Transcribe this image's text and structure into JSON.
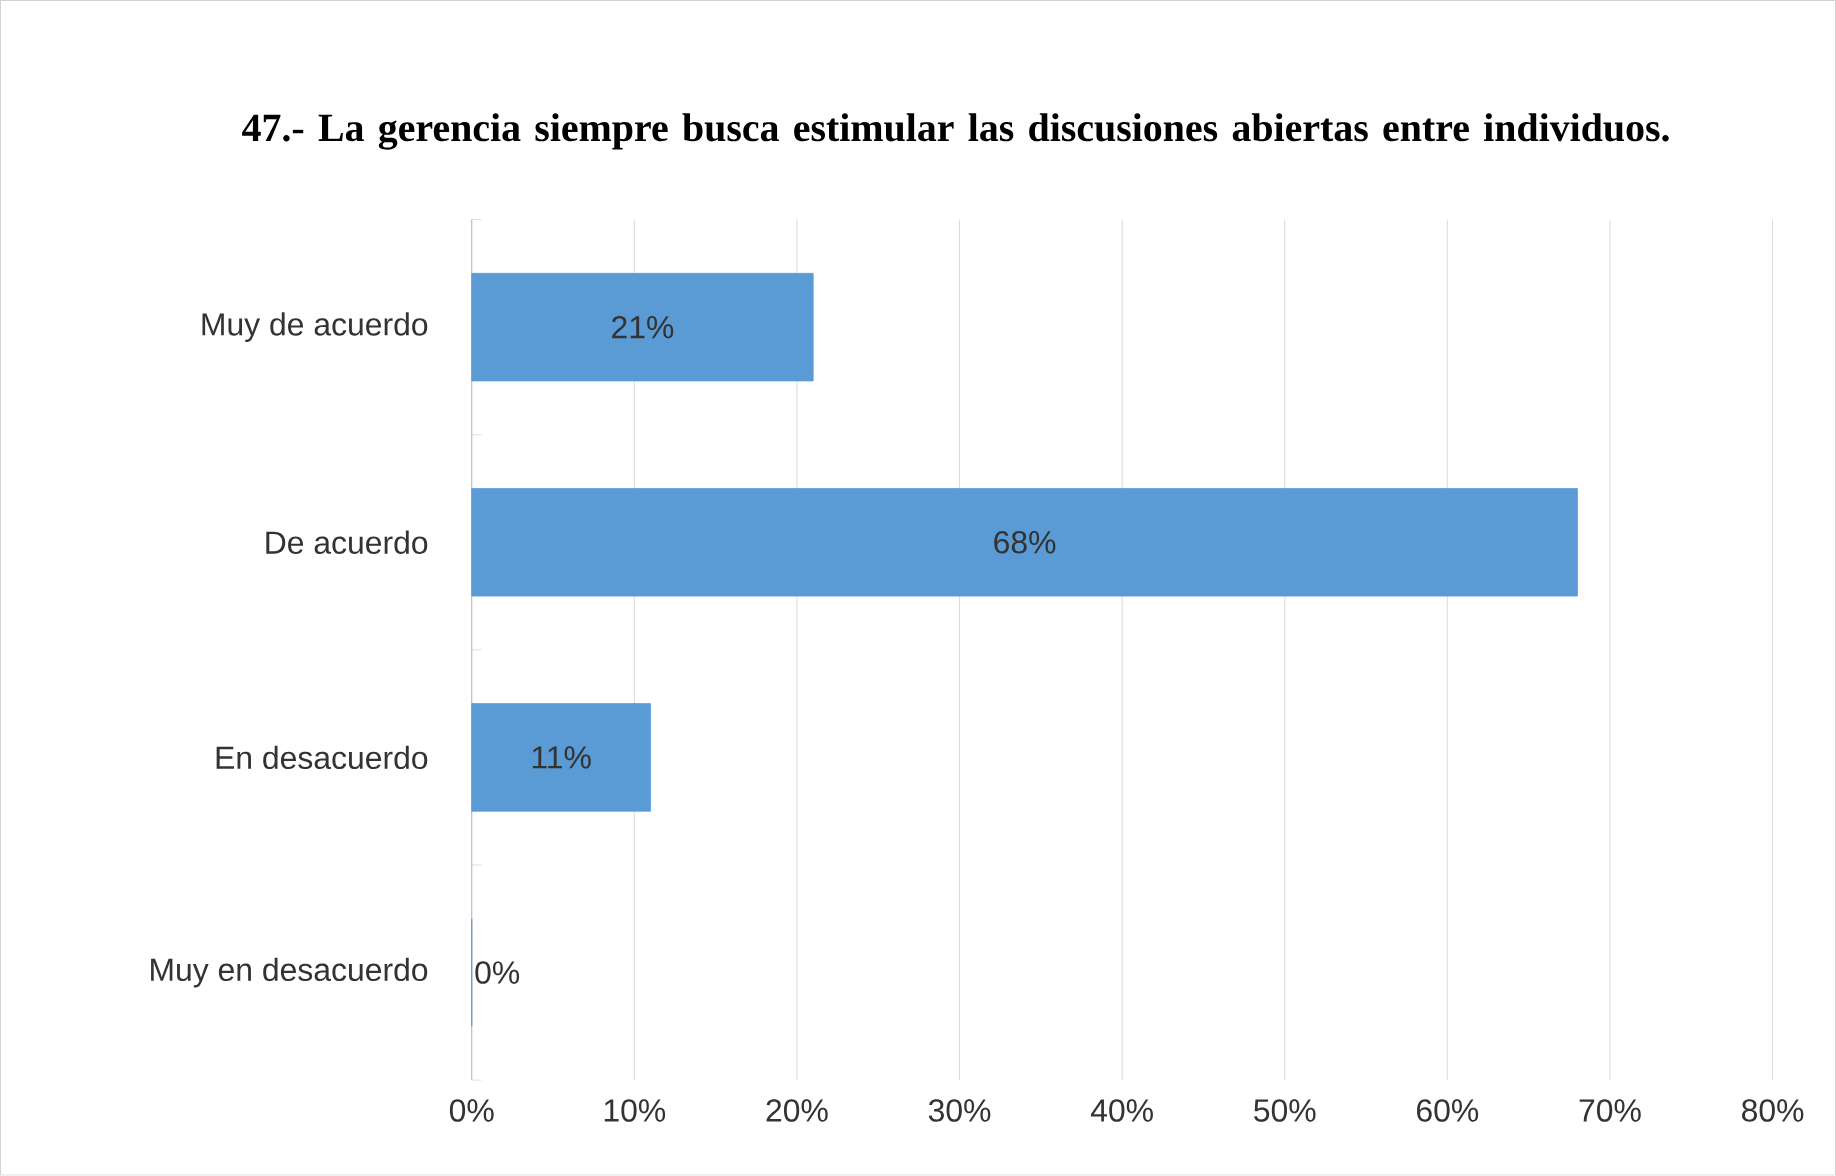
{
  "chart_data": {
    "type": "bar",
    "orientation": "horizontal",
    "title": "47.- La gerencia siempre busca estimular las discusiones abiertas entre individuos.",
    "categories": [
      "Muy de acuerdo",
      "De acuerdo",
      "En desacuerdo",
      "Muy en desacuerdo"
    ],
    "values": [
      21,
      68,
      11,
      0
    ],
    "value_labels": [
      "21%",
      "68%",
      "11%",
      "0%"
    ],
    "color": "#5b9bd5",
    "xlim": [
      0,
      80
    ],
    "xticks": [
      {
        "value": 0,
        "label": "0%"
      },
      {
        "value": 10,
        "label": "10%"
      },
      {
        "value": 20,
        "label": "20%"
      },
      {
        "value": 30,
        "label": "30%"
      },
      {
        "value": 40,
        "label": "40%"
      },
      {
        "value": 50,
        "label": "50%"
      },
      {
        "value": 60,
        "label": "60%"
      },
      {
        "value": 70,
        "label": "70%"
      },
      {
        "value": 80,
        "label": "80%"
      }
    ],
    "grid": "x"
  }
}
